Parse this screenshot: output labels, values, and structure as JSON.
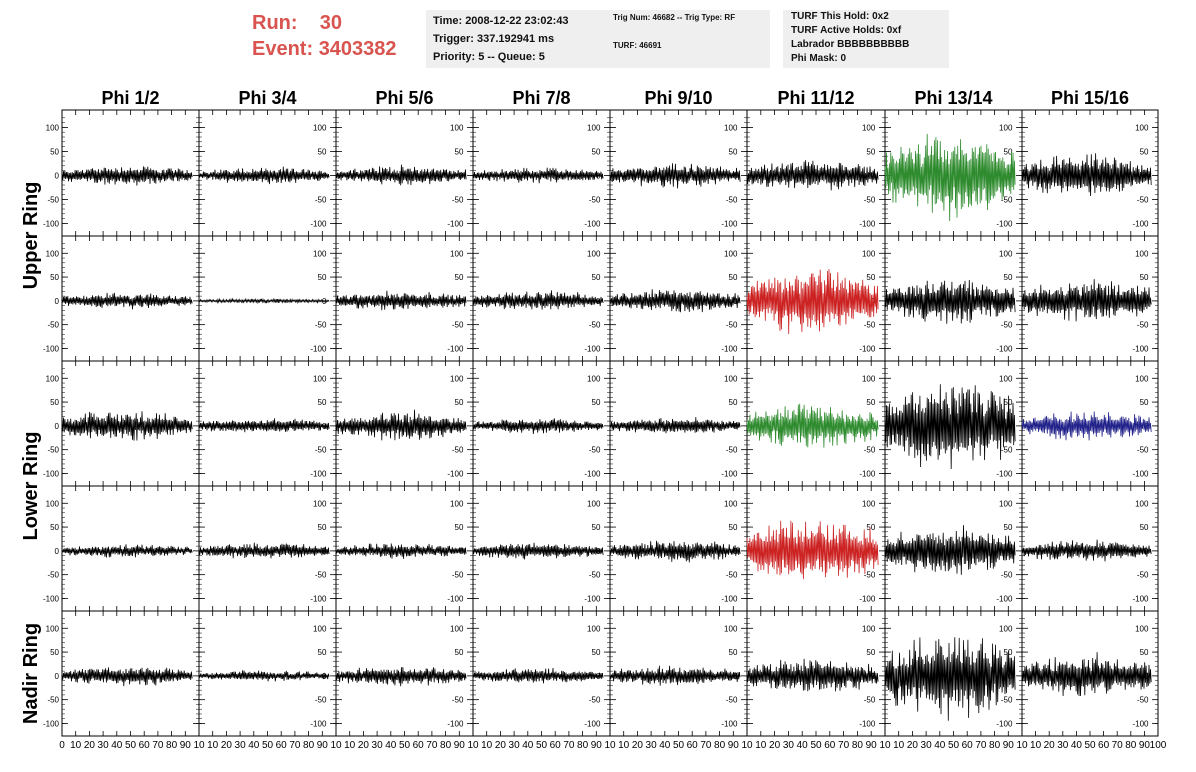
{
  "header": {
    "run_label": "Run:",
    "run_value": "30",
    "event_label": "Event:",
    "event_value": "3403382",
    "time": "Time: 2008-12-22 23:02:43",
    "trigger": "Trigger: 337.192941 ms",
    "priority": "Priority: 5 -- Queue: 5",
    "trig_num": "Trig Num: 46682 -- Trig Type: RF",
    "turf": "TURF: 46691",
    "turf_hold": "TURF This Hold: 0x2",
    "turf_active": "TURF Active Holds: 0xf",
    "labrador": "Labrador BBBBBBBBBB",
    "phi_mask": "Phi Mask: 0"
  },
  "chart_data": {
    "type": "line",
    "columns": [
      "Phi 1/2",
      "Phi 3/4",
      "Phi 5/6",
      "Phi 7/8",
      "Phi 9/10",
      "Phi 11/12",
      "Phi 13/14",
      "Phi 15/16"
    ],
    "row_groups": [
      {
        "label": "Upper Ring",
        "rows": [
          0,
          1
        ]
      },
      {
        "label": "Lower Ring",
        "rows": [
          2,
          3
        ]
      },
      {
        "label": "Nadir Ring",
        "rows": [
          4
        ]
      }
    ],
    "xlim": [
      0,
      100
    ],
    "ylim": [
      -120,
      130
    ],
    "y_ticks": [
      -100,
      -50,
      0,
      50,
      100
    ],
    "x_ticks": [
      0,
      10,
      20,
      30,
      40,
      50,
      60,
      70,
      80,
      90,
      100
    ],
    "x_tick_labels_first": [
      "0",
      "10",
      "20",
      "30",
      "40",
      "50",
      "60",
      "70",
      "80",
      "90",
      "10"
    ],
    "x_tick_labels_mid": [
      "10",
      "20",
      "30",
      "40",
      "50",
      "60",
      "70",
      "80",
      "90",
      "10"
    ],
    "x_tick_labels_last": [
      "10",
      "20",
      "30",
      "40",
      "50",
      "60",
      "70",
      "80",
      "90",
      "100"
    ],
    "trace_x_range": [
      0,
      95
    ],
    "colors": {
      "normal": "#000000",
      "green": "#2e8b2e",
      "red": "#cc2222",
      "blue": "#22228b"
    },
    "panels": [
      [
        {
          "amp": 18,
          "color": "normal"
        },
        {
          "amp": 15,
          "color": "normal"
        },
        {
          "amp": 18,
          "color": "normal"
        },
        {
          "amp": 14,
          "color": "normal"
        },
        {
          "amp": 22,
          "color": "normal"
        },
        {
          "amp": 28,
          "color": "normal"
        },
        {
          "amp": 75,
          "color": "green"
        },
        {
          "amp": 38,
          "color": "normal"
        }
      ],
      [
        {
          "amp": 15,
          "color": "normal"
        },
        {
          "amp": 4,
          "color": "normal"
        },
        {
          "amp": 18,
          "color": "normal"
        },
        {
          "amp": 18,
          "color": "normal"
        },
        {
          "amp": 22,
          "color": "normal"
        },
        {
          "amp": 60,
          "color": "red"
        },
        {
          "amp": 42,
          "color": "normal"
        },
        {
          "amp": 40,
          "color": "normal"
        }
      ],
      [
        {
          "amp": 28,
          "color": "normal"
        },
        {
          "amp": 14,
          "color": "normal"
        },
        {
          "amp": 28,
          "color": "normal"
        },
        {
          "amp": 14,
          "color": "normal"
        },
        {
          "amp": 15,
          "color": "normal"
        },
        {
          "amp": 40,
          "color": "green"
        },
        {
          "amp": 80,
          "color": "normal"
        },
        {
          "amp": 28,
          "color": "blue"
        }
      ],
      [
        {
          "amp": 12,
          "color": "normal"
        },
        {
          "amp": 15,
          "color": "normal"
        },
        {
          "amp": 14,
          "color": "normal"
        },
        {
          "amp": 16,
          "color": "normal"
        },
        {
          "amp": 20,
          "color": "normal"
        },
        {
          "amp": 60,
          "color": "red"
        },
        {
          "amp": 45,
          "color": "normal"
        },
        {
          "amp": 20,
          "color": "normal"
        }
      ],
      [
        {
          "amp": 18,
          "color": "normal"
        },
        {
          "amp": 10,
          "color": "normal"
        },
        {
          "amp": 18,
          "color": "normal"
        },
        {
          "amp": 14,
          "color": "normal"
        },
        {
          "amp": 18,
          "color": "normal"
        },
        {
          "amp": 32,
          "color": "normal"
        },
        {
          "amp": 75,
          "color": "normal"
        },
        {
          "amp": 40,
          "color": "normal"
        }
      ]
    ]
  }
}
